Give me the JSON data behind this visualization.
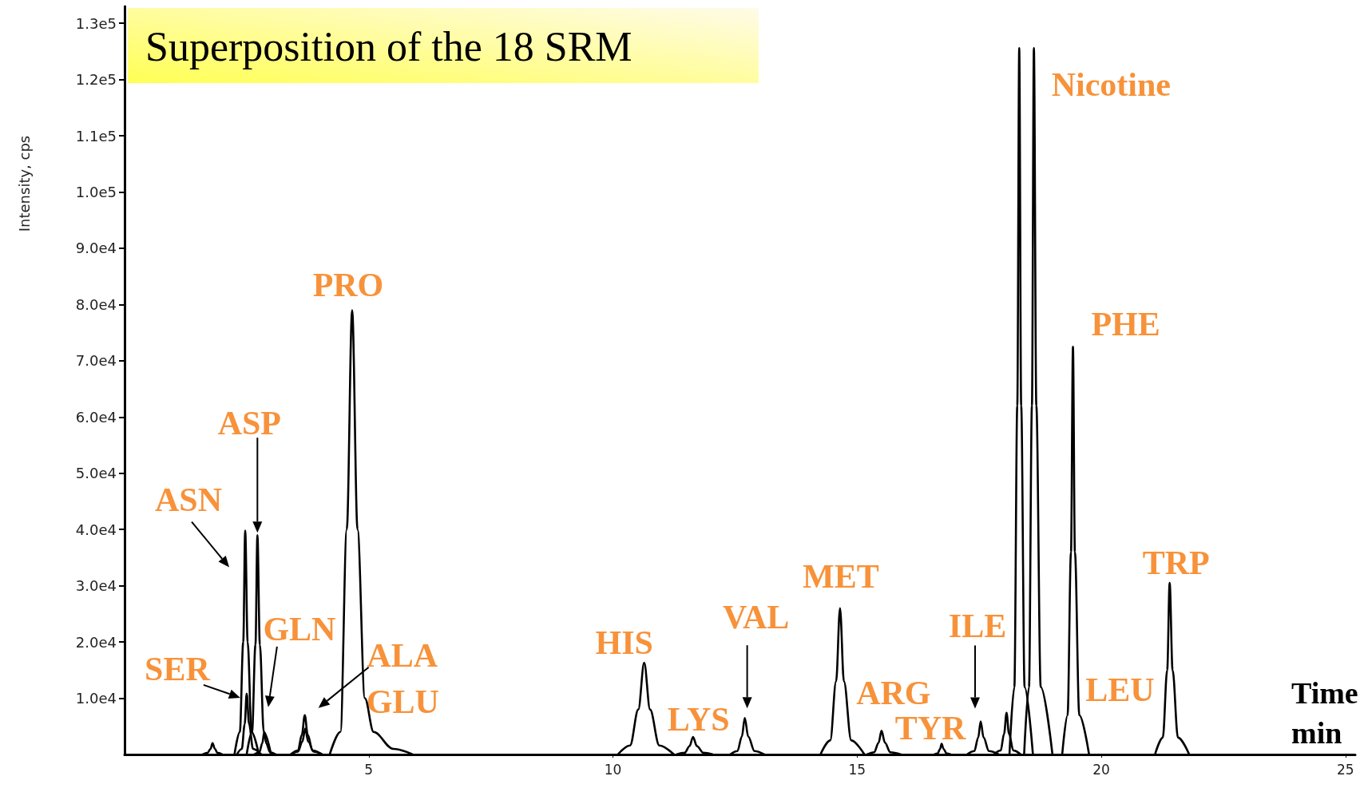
{
  "chart_data": {
    "type": "line",
    "title": "Superposition of the 18 SRM",
    "xlabel": "Time\nmin",
    "ylabel": "Intensity, cps",
    "xlim": [
      0,
      25.2
    ],
    "xticks": [
      5,
      10,
      15,
      20,
      25
    ],
    "ylim": [
      0,
      133000
    ],
    "yticks": [
      {
        "value": 10000,
        "label": "1.0e4"
      },
      {
        "value": 20000,
        "label": "2.0e4"
      },
      {
        "value": 30000,
        "label": "3.0e4"
      },
      {
        "value": 40000,
        "label": "4.0e4"
      },
      {
        "value": 50000,
        "label": "5.0e4"
      },
      {
        "value": 60000,
        "label": "6.0e4"
      },
      {
        "value": 70000,
        "label": "7.0e4"
      },
      {
        "value": 80000,
        "label": "8.0e4"
      },
      {
        "value": 90000,
        "label": "9.0e4"
      },
      {
        "value": 100000,
        "label": "1.0e5"
      },
      {
        "value": 110000,
        "label": "1.1e5"
      },
      {
        "value": 120000,
        "label": "1.2e5"
      },
      {
        "value": 130000,
        "label": "1.3e5"
      }
    ],
    "grid": false,
    "marker": "none",
    "series": [
      {
        "color": "#000000",
        "x": [
          1.6,
          1.7,
          1.76,
          1.8,
          1.85,
          1.9,
          2.0
        ],
        "values": [
          0,
          300,
          1000,
          2000,
          1000,
          300,
          0
        ]
      },
      {
        "color": "#000000",
        "x": [
          2.25,
          2.36,
          2.43,
          2.47,
          2.52,
          2.6,
          2.75
        ],
        "values": [
          0,
          4000,
          20000,
          39800,
          20000,
          4000,
          0
        ]
      },
      {
        "color": "#000000",
        "x": [
          2.3,
          2.4,
          2.46,
          2.5,
          2.55,
          2.63,
          2.8
        ],
        "values": [
          0,
          1000,
          5400,
          10800,
          5400,
          1000,
          0
        ]
      },
      {
        "color": "#000000",
        "x": [
          2.5,
          2.61,
          2.68,
          2.72,
          2.77,
          2.85,
          3.0
        ],
        "values": [
          0,
          4000,
          19500,
          39000,
          19500,
          4000,
          0
        ]
      },
      {
        "color": "#000000",
        "x": [
          2.65,
          2.76,
          2.82,
          2.86,
          2.9,
          2.98,
          3.1
        ],
        "values": [
          0,
          400,
          2000,
          4000,
          2000,
          400,
          0
        ]
      },
      {
        "color": "#000000",
        "x": [
          3.4,
          3.55,
          3.63,
          3.69,
          3.75,
          3.85,
          4.05
        ],
        "values": [
          0,
          700,
          3500,
          7000,
          3500,
          700,
          0
        ]
      },
      {
        "color": "#000000",
        "x": [
          3.4,
          3.55,
          3.64,
          3.7,
          3.76,
          3.87,
          4.05
        ],
        "values": [
          0,
          500,
          2300,
          4600,
          2300,
          500,
          0
        ]
      },
      {
        "color": "#000000",
        "x": [
          4.2,
          4.42,
          4.55,
          4.66,
          4.77,
          4.92,
          5.1,
          5.5,
          5.9
        ],
        "values": [
          0,
          4000,
          40000,
          79000,
          40000,
          10000,
          4000,
          1000,
          0
        ]
      },
      {
        "color": "#000000",
        "x": [
          10.1,
          10.35,
          10.52,
          10.64,
          10.76,
          10.95,
          11.25
        ],
        "values": [
          0,
          1600,
          8000,
          16300,
          8000,
          1600,
          0
        ]
      },
      {
        "color": "#000000",
        "x": [
          11.3,
          11.47,
          11.57,
          11.64,
          11.72,
          11.85,
          12.05
        ],
        "values": [
          0,
          300,
          1500,
          3100,
          1500,
          300,
          0
        ]
      },
      {
        "color": "#000000",
        "x": [
          12.4,
          12.55,
          12.64,
          12.7,
          12.77,
          12.9,
          13.1
        ],
        "values": [
          0,
          600,
          3200,
          6500,
          3200,
          600,
          0
        ]
      },
      {
        "color": "#000000",
        "x": [
          14.25,
          14.45,
          14.57,
          14.65,
          14.73,
          14.88,
          15.15
        ],
        "values": [
          0,
          2500,
          13000,
          26000,
          13000,
          2500,
          0
        ]
      },
      {
        "color": "#000000",
        "x": [
          15.2,
          15.35,
          15.44,
          15.5,
          15.57,
          15.68,
          15.9
        ],
        "values": [
          0,
          400,
          2100,
          4200,
          2100,
          400,
          0
        ]
      },
      {
        "color": "#000000",
        "x": [
          16.58,
          16.65,
          16.7,
          16.73,
          16.77,
          16.83,
          16.92
        ],
        "values": [
          0,
          200,
          1000,
          1900,
          1000,
          200,
          0
        ]
      },
      {
        "color": "#000000",
        "x": [
          17.25,
          17.4,
          17.48,
          17.53,
          17.59,
          17.7,
          17.9
        ],
        "values": [
          0,
          600,
          3000,
          5900,
          3000,
          600,
          0
        ]
      },
      {
        "color": "#000000",
        "x": [
          17.8,
          17.94,
          18.01,
          18.06,
          18.11,
          18.2,
          18.35
        ],
        "values": [
          0,
          700,
          3700,
          7400,
          3700,
          700,
          0
        ]
      },
      {
        "color": "#000000",
        "x": [
          18.12,
          18.22,
          18.28,
          18.32,
          18.36,
          18.43,
          18.6
        ],
        "values": [
          0,
          12000,
          62000,
          125600,
          62000,
          12000,
          0
        ]
      },
      {
        "color": "#000000",
        "x": [
          18.42,
          18.52,
          18.58,
          18.62,
          18.67,
          18.76,
          19.0
        ],
        "values": [
          0,
          12000,
          62000,
          125600,
          62000,
          12000,
          0
        ]
      },
      {
        "color": "#000000",
        "x": [
          19.2,
          19.31,
          19.38,
          19.42,
          19.46,
          19.55,
          19.75
        ],
        "values": [
          0,
          7000,
          36000,
          72500,
          36000,
          7000,
          0
        ]
      },
      {
        "color": "#000000",
        "x": [
          21.1,
          21.26,
          21.35,
          21.4,
          21.46,
          21.57,
          21.8
        ],
        "values": [
          0,
          3000,
          15000,
          30500,
          15000,
          3000,
          0
        ]
      }
    ],
    "annotations": [
      {
        "text": "ASN",
        "x": 2.47,
        "y": 39800
      },
      {
        "text": "ASP",
        "x": 2.72,
        "y": 39000
      },
      {
        "text": "SER",
        "x": 2.5,
        "y": 10800
      },
      {
        "text": "GLN",
        "x": 2.86,
        "y": 4000
      },
      {
        "text": "ALA",
        "x": 3.69,
        "y": 7000
      },
      {
        "text": "GLU",
        "x": 3.7,
        "y": 4600
      },
      {
        "text": "PRO",
        "x": 4.66,
        "y": 79000
      },
      {
        "text": "HIS",
        "x": 10.64,
        "y": 16300
      },
      {
        "text": "LYS",
        "x": 11.64,
        "y": 3100
      },
      {
        "text": "VAL",
        "x": 12.7,
        "y": 6500
      },
      {
        "text": "MET",
        "x": 14.65,
        "y": 26000
      },
      {
        "text": "ARG",
        "x": 15.5,
        "y": 4200
      },
      {
        "text": "TYR",
        "x": 16.73,
        "y": 1900
      },
      {
        "text": "ILE",
        "x": 17.53,
        "y": 5900
      },
      {
        "text": "LEU",
        "x": 18.06,
        "y": 7400
      },
      {
        "text": "Nicotine",
        "x": 18.32,
        "y": 125600
      },
      {
        "text": "PHE",
        "x": 19.42,
        "y": 72500
      },
      {
        "text": "TRP",
        "x": 21.4,
        "y": 30500
      }
    ]
  }
}
